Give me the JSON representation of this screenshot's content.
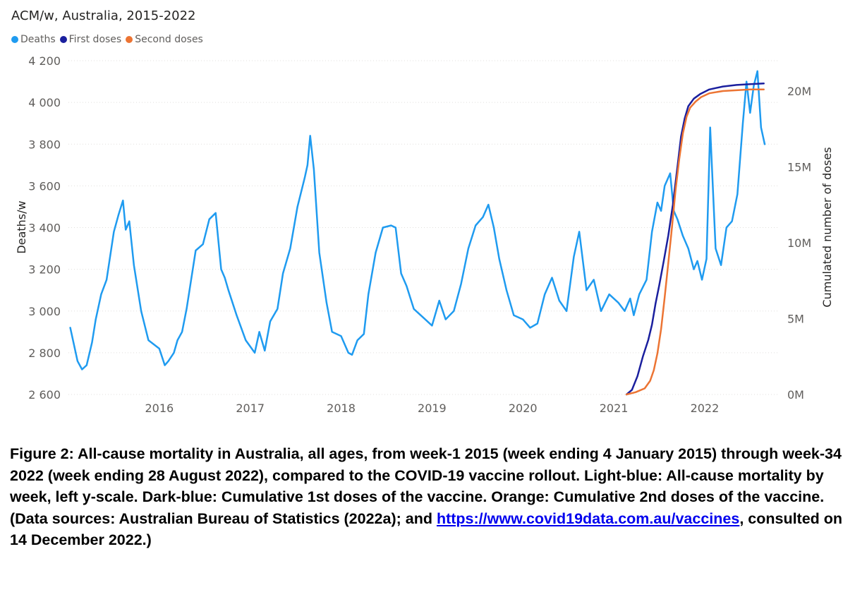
{
  "chart_data": {
    "type": "line",
    "title": "ACM/w, Australia, 2015-2022",
    "ylabel": "Deaths/w",
    "y2label": "Cumulated number of doses",
    "ylim": [
      2600,
      4200
    ],
    "y2lim": [
      0,
      22000000
    ],
    "xlim": [
      2015.0,
      2022.8
    ],
    "yticks": [
      "4 200",
      "4 000",
      "3 800",
      "3 600",
      "3 400",
      "3 200",
      "3 000",
      "2 800",
      "2 600"
    ],
    "yticks_values": [
      4200,
      4000,
      3800,
      3600,
      3400,
      3200,
      3000,
      2800,
      2600
    ],
    "y2ticks": [
      "20M",
      "15M",
      "10M",
      "5M",
      "0M"
    ],
    "y2ticks_values": [
      20000000,
      15000000,
      10000000,
      5000000,
      0
    ],
    "xticks": [
      "2016",
      "2017",
      "2018",
      "2019",
      "2020",
      "2021",
      "2022"
    ],
    "xticks_values": [
      2016,
      2017,
      2018,
      2019,
      2020,
      2021,
      2022
    ],
    "legend_position": "top-left",
    "series": [
      {
        "name": "Deaths",
        "color": "#1f9bf0",
        "axis": "left",
        "x": [
          2015.02,
          2015.1,
          2015.15,
          2015.2,
          2015.26,
          2015.3,
          2015.36,
          2015.42,
          2015.5,
          2015.55,
          2015.6,
          2015.63,
          2015.67,
          2015.72,
          2015.8,
          2015.88,
          2016.0,
          2016.06,
          2016.1,
          2016.16,
          2016.2,
          2016.25,
          2016.3,
          2016.4,
          2016.48,
          2016.55,
          2016.62,
          2016.68,
          2016.72,
          2016.76,
          2016.85,
          2016.95,
          2017.05,
          2017.1,
          2017.16,
          2017.22,
          2017.3,
          2017.36,
          2017.44,
          2017.52,
          2017.6,
          2017.63,
          2017.66,
          2017.7,
          2017.76,
          2017.84,
          2017.9,
          2018.0,
          2018.08,
          2018.12,
          2018.18,
          2018.25,
          2018.3,
          2018.38,
          2018.46,
          2018.55,
          2018.6,
          2018.66,
          2018.72,
          2018.8,
          2018.9,
          2019.0,
          2019.08,
          2019.15,
          2019.24,
          2019.32,
          2019.4,
          2019.48,
          2019.56,
          2019.62,
          2019.68,
          2019.74,
          2019.82,
          2019.9,
          2020.0,
          2020.08,
          2020.16,
          2020.24,
          2020.32,
          2020.4,
          2020.48,
          2020.56,
          2020.62,
          2020.7,
          2020.78,
          2020.86,
          2020.95,
          2021.05,
          2021.12,
          2021.18,
          2021.22,
          2021.28,
          2021.36,
          2021.42,
          2021.48,
          2021.52,
          2021.56,
          2021.62,
          2021.66,
          2021.7,
          2021.76,
          2021.82,
          2021.88,
          2021.92,
          2021.97,
          2022.02,
          2022.06,
          2022.12,
          2022.18,
          2022.24,
          2022.3,
          2022.36,
          2022.42,
          2022.46,
          2022.5,
          2022.54,
          2022.58,
          2022.62,
          2022.66
        ],
        "values": [
          2920,
          2760,
          2720,
          2740,
          2850,
          2960,
          3080,
          3150,
          3380,
          3460,
          3530,
          3390,
          3430,
          3220,
          3000,
          2860,
          2820,
          2740,
          2760,
          2800,
          2860,
          2900,
          3010,
          3290,
          3320,
          3440,
          3470,
          3200,
          3160,
          3100,
          2980,
          2860,
          2800,
          2900,
          2810,
          2950,
          3010,
          3180,
          3300,
          3500,
          3640,
          3700,
          3840,
          3680,
          3280,
          3040,
          2900,
          2880,
          2800,
          2790,
          2860,
          2890,
          3080,
          3280,
          3400,
          3410,
          3400,
          3180,
          3120,
          3010,
          2970,
          2930,
          3050,
          2960,
          3000,
          3130,
          3300,
          3410,
          3450,
          3510,
          3400,
          3250,
          3100,
          2980,
          2960,
          2920,
          2940,
          3080,
          3160,
          3050,
          3000,
          3260,
          3380,
          3100,
          3150,
          3000,
          3080,
          3040,
          3000,
          3060,
          2980,
          3080,
          3150,
          3380,
          3520,
          3480,
          3600,
          3660,
          3480,
          3440,
          3360,
          3300,
          3200,
          3240,
          3150,
          3250,
          3880,
          3300,
          3220,
          3400,
          3430,
          3560,
          3900,
          4100,
          3950,
          4080,
          4150,
          3880,
          3800
        ]
      },
      {
        "name": "First doses",
        "color": "#1a1f9e",
        "axis": "right",
        "x": [
          2021.14,
          2021.2,
          2021.26,
          2021.32,
          2021.38,
          2021.42,
          2021.46,
          2021.5,
          2021.55,
          2021.6,
          2021.65,
          2021.7,
          2021.74,
          2021.78,
          2021.82,
          2021.88,
          2021.95,
          2022.05,
          2022.2,
          2022.35,
          2022.5,
          2022.65
        ],
        "values": [
          0,
          300000,
          1200000,
          2500000,
          3600000,
          4600000,
          6000000,
          7200000,
          8800000,
          10500000,
          12500000,
          15000000,
          17000000,
          18200000,
          19000000,
          19500000,
          19800000,
          20100000,
          20300000,
          20400000,
          20450000,
          20500000
        ]
      },
      {
        "name": "Second doses",
        "color": "#ec7433",
        "axis": "right",
        "x": [
          2021.14,
          2021.24,
          2021.34,
          2021.4,
          2021.44,
          2021.48,
          2021.52,
          2021.56,
          2021.6,
          2021.64,
          2021.68,
          2021.72,
          2021.76,
          2021.8,
          2021.84,
          2021.9,
          2021.96,
          2022.05,
          2022.2,
          2022.35,
          2022.5,
          2022.65
        ],
        "values": [
          0,
          150000,
          400000,
          900000,
          1600000,
          2700000,
          4300000,
          6400000,
          8700000,
          11000000,
          13500000,
          15500000,
          17200000,
          18300000,
          18900000,
          19300000,
          19600000,
          19850000,
          20000000,
          20050000,
          20100000,
          20100000
        ]
      }
    ]
  },
  "caption": {
    "text_before": "Figure 2: All-cause mortality in Australia, all ages, from week-1 2015 (week ending 4 January 2015) through week-34 2022 (week ending 28 August 2022), compared to the COVID-19 vaccine rollout. Light-blue: All-cause mortality by week, left y-scale. Dark-blue: Cumulative 1st doses of the vaccine. Orange: Cumulative 2nd doses of the vaccine. (Data sources: Australian Bureau of Statistics (2022a); and ",
    "link_text": "https://www.covid19data.com.au/vaccines",
    "text_after": ", consulted on 14 December 2022.)"
  }
}
